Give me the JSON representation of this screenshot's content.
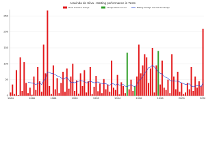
{
  "chart_data": {
    "type": "bar",
    "title": "Aravinda de Silva - Batting performance in Tests",
    "categories": [
      "1984",
      null,
      null,
      null,
      null,
      null,
      null,
      null,
      null,
      null,
      null,
      "1986",
      null,
      null,
      null,
      null,
      null,
      null,
      null,
      null,
      null,
      null,
      "1988",
      null,
      null,
      null,
      null,
      null,
      null,
      null,
      null,
      null,
      null,
      "1990",
      null,
      null,
      null,
      null,
      null,
      null,
      null,
      null,
      null,
      null,
      "1992",
      null,
      null,
      null,
      null,
      null,
      null,
      null,
      null,
      null,
      null,
      "1994",
      null,
      null,
      null,
      null,
      null,
      null,
      null,
      null,
      null,
      null,
      "1996",
      null,
      null,
      null,
      null,
      null,
      null,
      null,
      null,
      null,
      null,
      "1998",
      null,
      null,
      null,
      null,
      null,
      null,
      null,
      null,
      null,
      null,
      "2000",
      null,
      null,
      null,
      null,
      null,
      null,
      null,
      null,
      null,
      null,
      "2002"
    ],
    "series": [
      {
        "name": "Runs scored in innings",
        "color": "#e31a1c",
        "values": [
          10,
          35,
          5,
          80,
          2,
          120,
          15,
          105,
          40,
          8,
          25,
          3,
          60,
          18,
          90,
          45,
          12,
          160,
          70,
          267,
          30,
          5,
          95,
          20,
          55,
          8,
          40,
          75,
          12,
          85,
          22,
          60,
          100,
          15,
          48,
          6,
          70,
          30,
          80,
          10,
          45,
          90,
          5,
          28,
          62,
          14,
          38,
          8,
          52,
          20,
          35,
          12,
          110,
          25,
          18,
          65,
          4,
          42,
          30,
          8,
          null,
          20,
          50,
          15,
          null,
          60,
          160,
          70,
          95,
          130,
          120,
          40,
          85,
          150,
          10,
          95,
          null,
          35,
          110,
          25,
          18,
          50,
          8,
          130,
          60,
          20,
          75,
          12,
          40,
          5,
          10,
          40,
          20,
          90,
          15,
          60,
          25,
          45,
          30,
          210
        ]
      },
      {
        "name": "Innings where not out",
        "color": "#33a02c",
        "values": [
          null,
          null,
          null,
          null,
          null,
          null,
          null,
          null,
          null,
          null,
          null,
          null,
          null,
          null,
          null,
          null,
          null,
          null,
          null,
          null,
          null,
          null,
          null,
          null,
          null,
          null,
          null,
          null,
          null,
          null,
          null,
          null,
          null,
          null,
          null,
          null,
          null,
          null,
          null,
          null,
          null,
          null,
          null,
          null,
          null,
          null,
          null,
          null,
          null,
          null,
          null,
          null,
          null,
          null,
          null,
          null,
          null,
          null,
          null,
          null,
          135,
          null,
          null,
          null,
          30,
          null,
          null,
          null,
          null,
          null,
          null,
          null,
          null,
          null,
          null,
          null,
          140,
          null,
          null,
          null,
          null,
          null,
          null,
          null,
          null,
          null,
          null,
          null,
          null,
          null,
          null,
          null,
          null,
          null,
          null,
          null,
          null,
          null,
          null,
          null
        ]
      },
      {
        "name": "Batting average over last 10 innings",
        "color": "#1f3fd0",
        "line": true,
        "values": [
          null,
          null,
          null,
          null,
          null,
          null,
          null,
          null,
          null,
          42,
          41,
          40,
          38,
          35,
          38,
          40,
          35,
          47,
          52,
          75,
          72,
          70,
          69,
          66,
          62,
          60,
          56,
          52,
          55,
          57,
          50,
          40,
          43,
          40,
          43,
          45,
          48,
          46,
          44,
          40,
          42,
          45,
          43,
          40,
          42,
          43,
          40,
          38,
          37,
          38,
          34,
          32,
          38,
          37,
          33,
          37,
          33,
          34,
          35,
          30,
          28,
          32,
          35,
          30,
          29,
          33,
          47,
          52,
          60,
          70,
          78,
          88,
          90,
          95,
          90,
          82,
          75,
          70,
          68,
          60,
          57,
          55,
          48,
          46,
          47,
          45,
          46,
          43,
          40,
          38,
          35,
          36,
          37,
          30,
          28,
          30,
          31,
          33,
          28,
          40
        ]
      }
    ],
    "ylim": [
      0,
      270
    ],
    "yticks": [
      0,
      50,
      100,
      150,
      200,
      250
    ],
    "grid": true
  }
}
